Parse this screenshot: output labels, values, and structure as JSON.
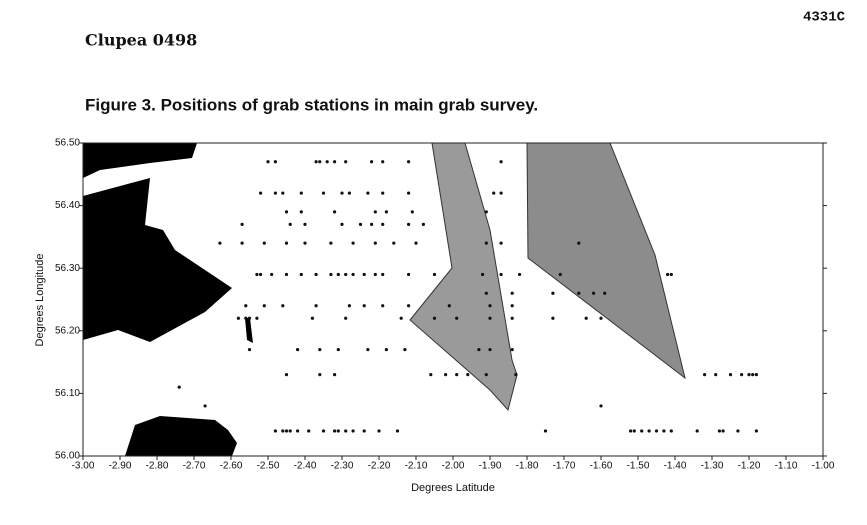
{
  "document": {
    "code": "4331C",
    "title": "Clupea 0498"
  },
  "chart_data": {
    "type": "scatter",
    "title": "Figure 3. Positions of grab stations in main grab survey.",
    "xlabel": "Degrees Latitude",
    "ylabel": "Degrees Longitude",
    "color": "#111111",
    "xlim": [
      -3,
      -1
    ],
    "ylim": [
      56,
      56.5
    ],
    "xticks": [
      {
        "value": -3,
        "label": "-3.00"
      },
      {
        "value": -2.9,
        "label": "-2.90"
      },
      {
        "value": -2.8,
        "label": "-2.80"
      },
      {
        "value": -2.7,
        "label": "-2.70"
      },
      {
        "value": -2.6,
        "label": "-2.60"
      },
      {
        "value": -2.5,
        "label": "-2.50"
      },
      {
        "value": -2.4,
        "label": "-2.40"
      },
      {
        "value": -2.3,
        "label": "-2.30"
      },
      {
        "value": -2.2,
        "label": "-2.20"
      },
      {
        "value": -2.1,
        "label": "-2.10"
      },
      {
        "value": -2,
        "label": "-2.00"
      },
      {
        "value": -1.9,
        "label": "-1.90"
      },
      {
        "value": -1.8,
        "label": "-1.80"
      },
      {
        "value": -1.7,
        "label": "-1.70"
      },
      {
        "value": -1.6,
        "label": "-1.60"
      },
      {
        "value": -1.5,
        "label": "-1.50"
      },
      {
        "value": -1.4,
        "label": "-1.40"
      },
      {
        "value": -1.3,
        "label": "-1.30"
      },
      {
        "value": -1.2,
        "label": "-1.20"
      },
      {
        "value": -1.1,
        "label": "-1.10"
      },
      {
        "value": -1,
        "label": "-1.00"
      }
    ],
    "yticks": [
      {
        "value": 56,
        "label": "56.00"
      },
      {
        "value": 56.1,
        "label": "56.10"
      },
      {
        "value": 56.2,
        "label": "56.20"
      },
      {
        "value": 56.3,
        "label": "56.30"
      },
      {
        "value": 56.4,
        "label": "56.40"
      },
      {
        "value": 56.5,
        "label": "56.50"
      }
    ],
    "x": [
      -2.5,
      -2.48,
      -2.37,
      -2.36,
      -2.34,
      -2.32,
      -2.29,
      -2.22,
      -2.19,
      -2.12,
      -1.87,
      -2.52,
      -2.48,
      -2.46,
      -2.41,
      -2.35,
      -2.3,
      -2.28,
      -2.23,
      -2.19,
      -2.12,
      -1.89,
      -1.87,
      -2.45,
      -2.41,
      -2.32,
      -2.21,
      -2.18,
      -2.11,
      -1.91,
      -2.57,
      -2.44,
      -2.4,
      -2.3,
      -2.25,
      -2.22,
      -2.19,
      -2.12,
      -2.08,
      -2.63,
      -2.57,
      -2.51,
      -2.45,
      -2.4,
      -2.33,
      -2.27,
      -2.21,
      -2.16,
      -2.1,
      -1.91,
      -1.87,
      -1.66,
      -2.53,
      -2.52,
      -2.49,
      -2.45,
      -2.41,
      -2.37,
      -2.33,
      -2.31,
      -2.29,
      -2.27,
      -2.24,
      -2.21,
      -2.19,
      -2.12,
      -2.05,
      -1.92,
      -1.87,
      -1.82,
      -1.71,
      -1.42,
      -1.41,
      -1.73,
      -1.66,
      -1.62,
      -1.59,
      -1.91,
      -1.84,
      -2.56,
      -2.51,
      -2.46,
      -2.37,
      -2.28,
      -2.24,
      -2.19,
      -2.12,
      -2.01,
      -1.9,
      -1.84,
      -2.58,
      -2.56,
      -2.55,
      -2.53,
      -2.38,
      -2.29,
      -2.14,
      -2.05,
      -1.99,
      -1.9,
      -1.84,
      -1.73,
      -1.64,
      -1.6,
      -2.55,
      -2.42,
      -2.36,
      -2.31,
      -2.23,
      -2.18,
      -2.13,
      -1.93,
      -1.9,
      -1.84,
      -2.45,
      -2.36,
      -2.32,
      -2.06,
      -2.02,
      -1.99,
      -1.96,
      -1.91,
      -1.83,
      -1.32,
      -1.29,
      -1.25,
      -1.22,
      -1.2,
      -1.19,
      -1.18,
      -2.74,
      -2.67,
      -1.6,
      -2.48,
      -2.46,
      -2.45,
      -2.44,
      -2.42,
      -2.39,
      -2.35,
      -2.32,
      -2.31,
      -2.29,
      -2.27,
      -2.24,
      -2.2,
      -2.15,
      -1.75,
      -1.52,
      -1.51,
      -1.49,
      -1.47,
      -1.45,
      -1.43,
      -1.41,
      -1.34,
      -1.28,
      -1.27,
      -1.23,
      -1.18
    ],
    "values": [
      56.47,
      56.47,
      56.47,
      56.47,
      56.47,
      56.47,
      56.47,
      56.47,
      56.47,
      56.47,
      56.47,
      56.42,
      56.42,
      56.42,
      56.42,
      56.42,
      56.42,
      56.42,
      56.42,
      56.42,
      56.42,
      56.42,
      56.42,
      56.39,
      56.39,
      56.39,
      56.39,
      56.39,
      56.39,
      56.39,
      56.37,
      56.37,
      56.37,
      56.37,
      56.37,
      56.37,
      56.37,
      56.37,
      56.37,
      56.34,
      56.34,
      56.34,
      56.34,
      56.34,
      56.34,
      56.34,
      56.34,
      56.34,
      56.34,
      56.34,
      56.34,
      56.34,
      56.29,
      56.29,
      56.29,
      56.29,
      56.29,
      56.29,
      56.29,
      56.29,
      56.29,
      56.29,
      56.29,
      56.29,
      56.29,
      56.29,
      56.29,
      56.29,
      56.29,
      56.29,
      56.29,
      56.29,
      56.29,
      56.26,
      56.26,
      56.26,
      56.26,
      56.26,
      56.26,
      56.24,
      56.24,
      56.24,
      56.24,
      56.24,
      56.24,
      56.24,
      56.24,
      56.24,
      56.24,
      56.24,
      56.22,
      56.22,
      56.22,
      56.22,
      56.22,
      56.22,
      56.22,
      56.22,
      56.22,
      56.22,
      56.22,
      56.22,
      56.22,
      56.22,
      56.17,
      56.17,
      56.17,
      56.17,
      56.17,
      56.17,
      56.17,
      56.17,
      56.17,
      56.17,
      56.13,
      56.13,
      56.13,
      56.13,
      56.13,
      56.13,
      56.13,
      56.13,
      56.13,
      56.13,
      56.13,
      56.13,
      56.13,
      56.13,
      56.13,
      56.13,
      56.11,
      56.08,
      56.08,
      56.04,
      56.04,
      56.04,
      56.04,
      56.04,
      56.04,
      56.04,
      56.04,
      56.04,
      56.04,
      56.04,
      56.04,
      56.04,
      56.04,
      56.04,
      56.04,
      56.04,
      56.04,
      56.04,
      56.04,
      56.04,
      56.04,
      56.04,
      56.04,
      56.04,
      56.04,
      56.04
    ]
  }
}
